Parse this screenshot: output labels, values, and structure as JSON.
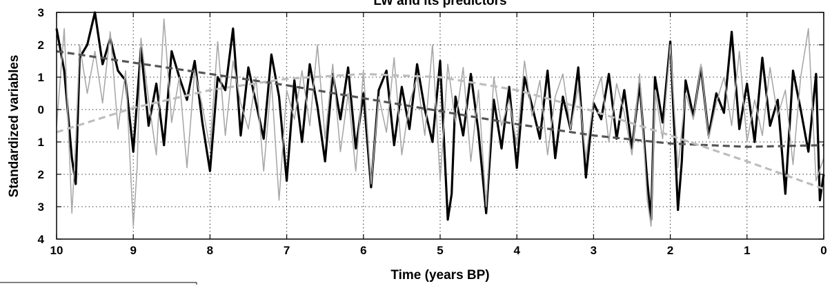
{
  "chart_data": {
    "type": "line",
    "title": "LW and its predictors",
    "xlabel": "Time (years BP)",
    "ylabel": "Standardized variables",
    "xlim": [
      10,
      0
    ],
    "ylim": [
      -4,
      3
    ],
    "x_reversed": true,
    "x_ticks": [
      10,
      9,
      8,
      7,
      6,
      5,
      4,
      3,
      2,
      1,
      0
    ],
    "y_ticks": [
      3,
      2,
      1,
      0,
      -1,
      -2,
      -3,
      -4
    ],
    "y_tick_labels": [
      "3",
      "2",
      "1",
      "0",
      "1",
      "2",
      "3",
      "4"
    ],
    "grid": true,
    "legend": "none",
    "series": [
      {
        "style": "thick black line",
        "color": "#000000",
        "x": [
          10.0,
          9.9,
          9.8,
          9.75,
          9.7,
          9.6,
          9.5,
          9.4,
          9.3,
          9.2,
          9.1,
          9.0,
          8.9,
          8.8,
          8.7,
          8.6,
          8.5,
          8.4,
          8.3,
          8.2,
          8.1,
          8.0,
          7.9,
          7.8,
          7.7,
          7.6,
          7.5,
          7.4,
          7.3,
          7.2,
          7.1,
          7.0,
          6.9,
          6.8,
          6.7,
          6.6,
          6.5,
          6.4,
          6.3,
          6.2,
          6.1,
          6.0,
          5.9,
          5.8,
          5.7,
          5.6,
          5.5,
          5.4,
          5.3,
          5.2,
          5.1,
          5.0,
          4.9,
          4.85,
          4.8,
          4.7,
          4.6,
          4.5,
          4.4,
          4.3,
          4.2,
          4.1,
          4.0,
          3.9,
          3.8,
          3.7,
          3.6,
          3.5,
          3.4,
          3.3,
          3.2,
          3.1,
          3.0,
          2.9,
          2.8,
          2.7,
          2.6,
          2.5,
          2.4,
          2.3,
          2.25,
          2.2,
          2.1,
          2.0,
          1.9,
          1.85,
          1.8,
          1.7,
          1.6,
          1.5,
          1.4,
          1.3,
          1.2,
          1.1,
          1.0,
          0.9,
          0.8,
          0.7,
          0.6,
          0.5,
          0.4,
          0.3,
          0.2,
          0.1,
          0.05,
          0.0
        ],
        "y": [
          2.5,
          1.2,
          -1.5,
          -2.3,
          1.6,
          2.0,
          3.0,
          1.4,
          2.2,
          1.2,
          0.9,
          -1.3,
          1.9,
          -0.5,
          0.8,
          -1.1,
          1.8,
          1.0,
          0.3,
          1.5,
          -0.4,
          -1.9,
          1.0,
          0.6,
          2.5,
          -0.8,
          1.3,
          0.2,
          -0.9,
          1.7,
          0.4,
          -2.2,
          0.9,
          -1.0,
          1.4,
          0.1,
          -1.6,
          1.1,
          -0.3,
          1.3,
          -1.2,
          0.5,
          -2.4,
          0.6,
          1.2,
          -1.1,
          0.7,
          -0.6,
          1.4,
          0.0,
          -1.0,
          1.5,
          -3.4,
          -2.6,
          0.4,
          -0.8,
          1.1,
          -0.7,
          -3.2,
          0.3,
          -1.2,
          0.7,
          -1.8,
          1.0,
          0.1,
          -0.9,
          1.2,
          -1.5,
          0.4,
          -0.6,
          1.3,
          -2.1,
          0.2,
          -0.3,
          1.1,
          -0.9,
          0.6,
          -1.2,
          0.8,
          -2.2,
          -3.4,
          1.0,
          -0.4,
          2.1,
          -3.1,
          -1.6,
          0.9,
          -0.2,
          1.3,
          -0.8,
          0.5,
          -0.1,
          2.4,
          -0.6,
          0.8,
          -1.0,
          1.6,
          -0.5,
          0.3,
          -2.6,
          1.2,
          0.0,
          -1.3,
          1.1,
          -2.8,
          -2.0
        ]
      },
      {
        "style": "thin gray line",
        "color": "#a8a8a8",
        "x": [
          10.0,
          9.9,
          9.8,
          9.75,
          9.7,
          9.6,
          9.5,
          9.4,
          9.3,
          9.2,
          9.1,
          9.0,
          8.95,
          8.9,
          8.8,
          8.7,
          8.6,
          8.5,
          8.4,
          8.3,
          8.2,
          8.1,
          8.0,
          7.9,
          7.8,
          7.7,
          7.6,
          7.5,
          7.4,
          7.3,
          7.2,
          7.1,
          7.0,
          6.9,
          6.8,
          6.7,
          6.6,
          6.5,
          6.4,
          6.3,
          6.2,
          6.1,
          6.0,
          5.9,
          5.8,
          5.7,
          5.6,
          5.5,
          5.4,
          5.3,
          5.2,
          5.1,
          5.0,
          4.9,
          4.8,
          4.7,
          4.6,
          4.5,
          4.4,
          4.3,
          4.2,
          4.1,
          4.0,
          3.9,
          3.8,
          3.7,
          3.6,
          3.5,
          3.4,
          3.3,
          3.2,
          3.1,
          3.0,
          2.9,
          2.8,
          2.7,
          2.6,
          2.5,
          2.4,
          2.3,
          2.25,
          2.2,
          2.1,
          2.0,
          1.9,
          1.8,
          1.7,
          1.6,
          1.5,
          1.4,
          1.3,
          1.2,
          1.1,
          1.0,
          0.9,
          0.8,
          0.7,
          0.6,
          0.5,
          0.4,
          0.3,
          0.2,
          0.1,
          0.0
        ],
        "y": [
          -0.5,
          2.5,
          -3.2,
          -1.0,
          2.0,
          0.5,
          1.8,
          0.2,
          2.4,
          -0.6,
          1.2,
          -3.6,
          -1.8,
          2.2,
          0.3,
          -1.4,
          2.8,
          -0.4,
          1.0,
          -1.8,
          1.2,
          0.1,
          -1.2,
          2.1,
          -0.8,
          1.5,
          0.2,
          -0.6,
          1.0,
          -1.9,
          0.9,
          -2.8,
          0.6,
          -0.3,
          1.2,
          -0.5,
          2.0,
          -0.9,
          1.4,
          -1.3,
          0.5,
          -1.9,
          1.2,
          -2.3,
          0.4,
          -0.7,
          1.6,
          -1.4,
          0.2,
          1.0,
          -0.8,
          2.0,
          -2.2,
          1.4,
          -0.4,
          1.3,
          -1.6,
          0.6,
          -3.0,
          1.0,
          -0.5,
          0.3,
          -1.1,
          1.5,
          -0.2,
          0.9,
          -1.4,
          0.4,
          1.1,
          -0.6,
          0.7,
          -1.5,
          0.3,
          1.0,
          -1.0,
          0.8,
          -0.1,
          -1.4,
          1.1,
          -2.8,
          -3.6,
          0.6,
          -0.9,
          2.0,
          -1.8,
          0.5,
          -0.3,
          1.4,
          -0.9,
          0.2,
          1.0,
          -0.5,
          1.8,
          -1.0,
          0.3,
          -0.8,
          1.3,
          -0.2,
          0.6,
          -1.7,
          1.0,
          2.5,
          -2.2,
          -1.5
        ]
      },
      {
        "style": "dark gray dashed trend",
        "color": "#555555",
        "x": [
          10.0,
          9.0,
          8.0,
          7.0,
          6.0,
          5.0,
          4.0,
          3.0,
          2.0,
          1.0,
          0.0
        ],
        "y": [
          1.8,
          1.45,
          1.1,
          0.75,
          0.35,
          -0.05,
          -0.45,
          -0.8,
          -1.05,
          -1.15,
          -1.1
        ]
      },
      {
        "style": "light gray dashed trend",
        "color": "#bdbdbd",
        "x": [
          10.0,
          9.0,
          8.0,
          7.0,
          6.0,
          5.0,
          4.0,
          3.0,
          2.0,
          1.0,
          0.0
        ],
        "y": [
          -0.7,
          0.05,
          0.6,
          0.95,
          1.1,
          1.0,
          0.6,
          -0.05,
          -0.8,
          -1.6,
          -2.45
        ]
      }
    ]
  }
}
